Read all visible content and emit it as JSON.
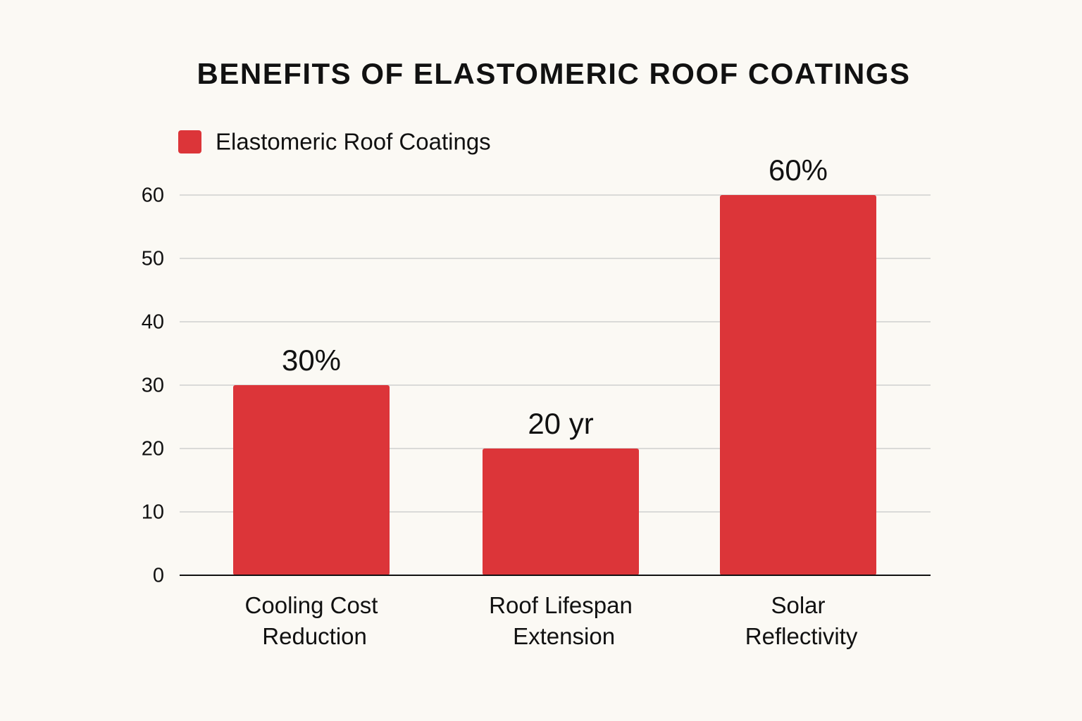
{
  "chart_data": {
    "type": "bar",
    "title": "BENEFITS OF ELASTOMERIC ROOF COATINGS",
    "categories": [
      "Cooling Cost Reduction",
      "Roof Lifespan Extension",
      "Solar Reflectivity"
    ],
    "series": [
      {
        "name": "Elastomeric Roof Coatings",
        "color": "#dc3539",
        "values": [
          30,
          20,
          60
        ],
        "value_labels": [
          "30%",
          "20 yr",
          "60%"
        ]
      }
    ],
    "ylim": [
      0,
      60
    ],
    "yticks": [
      0,
      10,
      20,
      30,
      40,
      50,
      60
    ],
    "grid": true,
    "legend": "top-left"
  }
}
